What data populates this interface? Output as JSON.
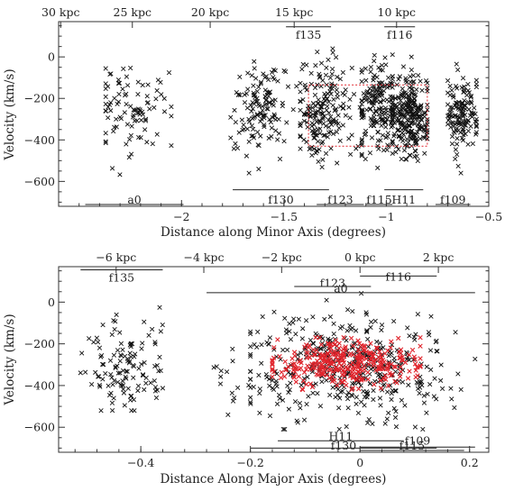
{
  "chart_data": [
    {
      "type": "scatter",
      "xlabel": "Distance along Minor Axis (degrees)",
      "ylabel": "Velocity (km/s)",
      "xlim": [
        -2.6,
        -0.5
      ],
      "ylim": [
        -720,
        170
      ],
      "x_ticks": [
        -2,
        -1.5,
        -1,
        -0.5
      ],
      "x_tick_labels": [
        "−2",
        "−1.5",
        "−1",
        "−0.5"
      ],
      "y_ticks": [
        0,
        -200,
        -400,
        -600
      ],
      "y_tick_labels": [
        "0",
        "−200",
        "−400",
        "−600"
      ],
      "top_ticks": [
        {
          "x": -2.59,
          "label": "30 kpc"
        },
        {
          "x": -2.24,
          "label": "25 kpc"
        },
        {
          "x": -1.86,
          "label": "20 kpc"
        },
        {
          "x": -1.45,
          "label": "15 kpc"
        },
        {
          "x": -0.95,
          "label": "10 kpc"
        }
      ],
      "fields": [
        {
          "label": "a0",
          "x_from": -2.47,
          "x_to": -1.99,
          "y": -750,
          "label_y": -725
        },
        {
          "label": "f130",
          "x_from": -1.75,
          "x_to": -1.28,
          "y": -640,
          "label_y": -715
        },
        {
          "label": "f123",
          "x_from": -1.34,
          "x_to": -1.11,
          "y": -750,
          "label_y": -725
        },
        {
          "label": "f115",
          "x_from": -1.1,
          "x_to": -0.97,
          "y": -750,
          "label_y": -725
        },
        {
          "label": "H11",
          "x_from": -1.01,
          "x_to": -0.82,
          "y": -640,
          "label_y": -715
        },
        {
          "label": "f109",
          "x_from": -0.76,
          "x_to": -0.59,
          "y": -750,
          "label_y": -725
        },
        {
          "label": "f135",
          "x_from": -1.49,
          "x_to": -1.27,
          "y": 145,
          "label_y": 105
        },
        {
          "label": "f116",
          "x_from": -1.01,
          "x_to": -0.86,
          "y": 145,
          "label_y": 105
        }
      ],
      "highlight_box": {
        "x_from": -1.38,
        "x_to": -0.8,
        "y_from": -430,
        "y_to": -135
      },
      "clusters_seeded": [
        {
          "xc": -2.25,
          "xs": 0.09,
          "yc": -260,
          "ys": 110,
          "n": 95,
          "xmin": -2.37,
          "xmax": -2.05,
          "ymin": -600,
          "ymax": 15
        },
        {
          "xc": -1.62,
          "xs": 0.07,
          "yc": -250,
          "ys": 110,
          "n": 135,
          "xmin": -1.76,
          "xmax": -1.42,
          "ymin": -560,
          "ymax": 25
        },
        {
          "xc": -1.3,
          "xs": 0.07,
          "yc": -260,
          "ys": 120,
          "n": 190,
          "xmin": -1.42,
          "xmax": -1.12,
          "ymin": -640,
          "ymax": 40
        },
        {
          "xc": -1.04,
          "xs": 0.06,
          "yc": -250,
          "ys": 110,
          "n": 190,
          "xmin": -1.12,
          "xmax": -0.97,
          "ymin": -600,
          "ymax": 35
        },
        {
          "xc": -0.88,
          "xs": 0.05,
          "yc": -290,
          "ys": 95,
          "n": 260,
          "xmin": -0.97,
          "xmax": -0.8,
          "ymin": -600,
          "ymax": 15
        },
        {
          "xc": -0.63,
          "xs": 0.04,
          "yc": -280,
          "ys": 100,
          "n": 140,
          "xmin": -0.7,
          "xmax": -0.56,
          "ymin": -560,
          "ymax": 50
        }
      ]
    },
    {
      "type": "scatter",
      "xlabel": "Distance Along Major Axis (degrees)",
      "ylabel": "Velocity (km/s)",
      "xlim": [
        -0.55,
        0.235
      ],
      "ylim": [
        -720,
        170
      ],
      "x_ticks": [
        -0.4,
        -0.2,
        0,
        0.2
      ],
      "x_tick_labels": [
        "−0.4",
        "−0.2",
        "0",
        "0.2"
      ],
      "y_ticks": [
        0,
        -200,
        -400,
        -600
      ],
      "y_tick_labels": [
        "0",
        "−200",
        "−400",
        "−600"
      ],
      "top_ticks": [
        {
          "x": -0.445,
          "label": "−6 kpc"
        },
        {
          "x": -0.285,
          "label": "−4 kpc"
        },
        {
          "x": -0.143,
          "label": "−2 kpc"
        },
        {
          "x": 0.0,
          "label": "0 kpc"
        },
        {
          "x": 0.143,
          "label": "2 kpc"
        }
      ],
      "fields": [
        {
          "label": "f135",
          "x_from": -0.51,
          "x_to": -0.36,
          "y": 155,
          "label_y": 115
        },
        {
          "label": "a0",
          "x_from": -0.28,
          "x_to": 0.21,
          "y": 45,
          "label_y": 65
        },
        {
          "label": "f123",
          "x_from": -0.12,
          "x_to": 0.02,
          "y": 75,
          "label_y": 90
        },
        {
          "label": "f116",
          "x_from": 0.0,
          "x_to": 0.14,
          "y": 125,
          "label_y": 120
        },
        {
          "label": "H11",
          "x_from": -0.15,
          "x_to": 0.08,
          "y": -665,
          "label_y": -645
        },
        {
          "label": "f109",
          "x_from": 0.0,
          "x_to": 0.21,
          "y": -695,
          "label_y": -665
        },
        {
          "label": "f130",
          "x_from": -0.2,
          "x_to": 0.14,
          "y": -700,
          "label_y": -735
        },
        {
          "label": "f115",
          "x_from": 0.0,
          "x_to": 0.19,
          "y": -770,
          "label_y": -755
        }
      ],
      "clusters_seeded": [
        {
          "xc": -0.43,
          "xs": 0.04,
          "yc": -320,
          "ys": 120,
          "n": 120,
          "xmin": -0.51,
          "xmax": -0.36,
          "ymin": -520,
          "ymax": 40,
          "color": "black"
        },
        {
          "xc": -0.02,
          "xs": 0.09,
          "yc": -310,
          "ys": 120,
          "n": 440,
          "xmin": -0.2,
          "xmax": 0.21,
          "ymin": -610,
          "ymax": 50,
          "color": "black"
        },
        {
          "xc": -0.02,
          "xs": 0.07,
          "yc": -290,
          "ys": 55,
          "n": 330,
          "xmin": -0.16,
          "xmax": 0.11,
          "ymin": -420,
          "ymax": -170,
          "color": "red"
        },
        {
          "xc": -0.24,
          "xs": 0.02,
          "yc": -380,
          "ys": 90,
          "n": 14,
          "xmin": -0.29,
          "xmax": -0.2,
          "ymin": -540,
          "ymax": -200,
          "color": "black"
        }
      ]
    }
  ]
}
